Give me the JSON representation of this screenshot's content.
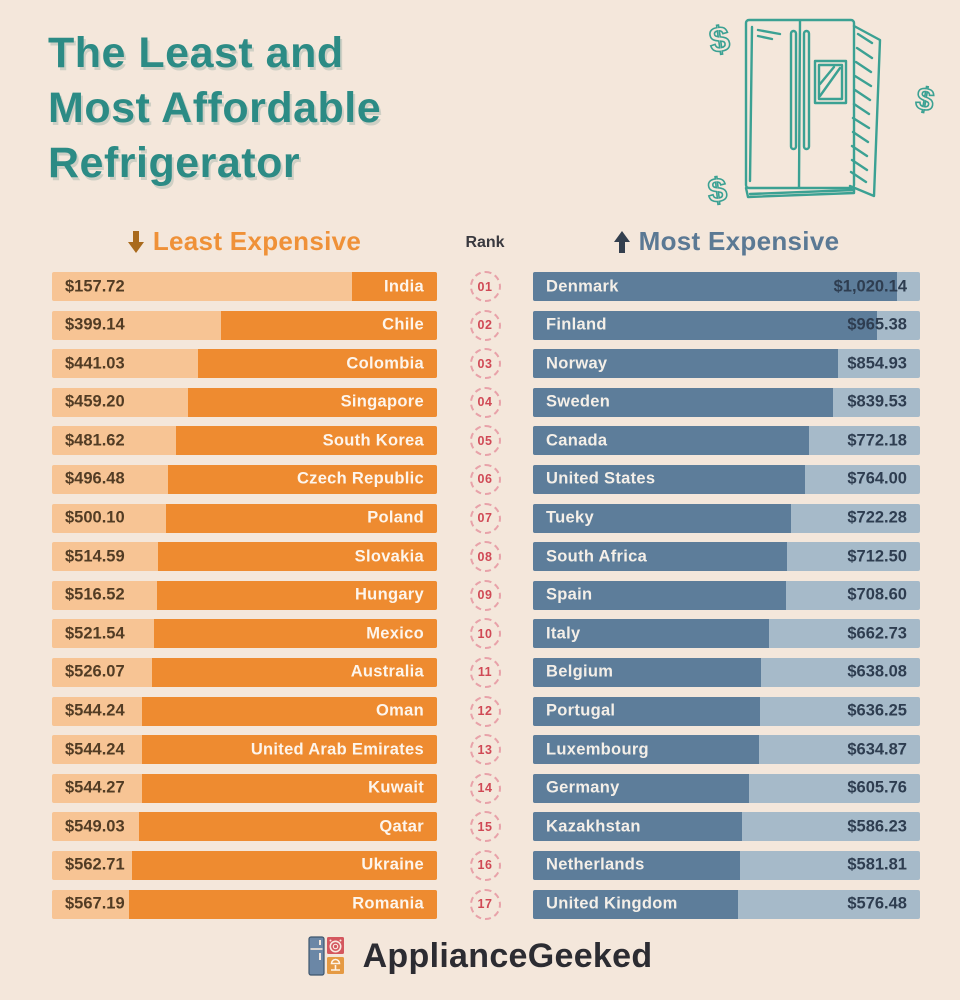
{
  "title": "The Least and\nMost Affordable\nRefrigerator",
  "header": {
    "least_label": "Least Expensive",
    "rank_label": "Rank",
    "most_label": "Most Expensive"
  },
  "footer": {
    "brand": "ApplianceGeeked"
  },
  "colors": {
    "background": "#f4e7db",
    "title_teal": "#2c8b85",
    "least_fill": "#ee8b30",
    "least_track": "#f7c494",
    "least_header": "#ef9138",
    "most_fill": "#5d7d9a",
    "most_track": "#a6bac9",
    "most_header": "#5b7994",
    "rank_number": "#d04955",
    "rank_circle": "#e8a2a9",
    "illustration_teal": "#3ba193"
  },
  "chart_data": {
    "type": "bar",
    "title": "The Least and Most Affordable Refrigerator",
    "legend_position": "top",
    "grid": false,
    "ranks": [
      "01",
      "02",
      "03",
      "04",
      "05",
      "06",
      "07",
      "08",
      "09",
      "10",
      "11",
      "12",
      "13",
      "14",
      "15",
      "16",
      "17"
    ],
    "least_expensive": {
      "label": "Least Expensive",
      "bar_direction": "right-anchored",
      "scale_max": 710,
      "countries": [
        "India",
        "Chile",
        "Colombia",
        "Singapore",
        "South Korea",
        "Czech Republic",
        "Poland",
        "Slovakia",
        "Hungary",
        "Mexico",
        "Australia",
        "Oman",
        "United Arab Emirates",
        "Kuwait",
        "Qatar",
        "Ukraine",
        "Romania"
      ],
      "prices": [
        "$157.72",
        "$399.14",
        "$441.03",
        "$459.20",
        "$481.62",
        "$496.48",
        "$500.10",
        "$514.59",
        "$516.52",
        "$521.54",
        "$526.07",
        "$544.24",
        "$544.24",
        "$544.27",
        "$549.03",
        "$562.71",
        "$567.19"
      ],
      "values": [
        157.72,
        399.14,
        441.03,
        459.2,
        481.62,
        496.48,
        500.1,
        514.59,
        516.52,
        521.54,
        526.07,
        544.24,
        544.24,
        544.27,
        549.03,
        562.71,
        567.19
      ]
    },
    "most_expensive": {
      "label": "Most Expensive",
      "bar_direction": "left-anchored",
      "scale_max": 1085,
      "countries": [
        "Denmark",
        "Finland",
        "Norway",
        "Sweden",
        "Canada",
        "United States",
        "Tueky",
        "South Africa",
        "Spain",
        "Italy",
        "Belgium",
        "Portugal",
        "Luxembourg",
        "Germany",
        "Kazakhstan",
        "Netherlands",
        "United Kingdom"
      ],
      "prices": [
        "$1,020.14",
        "$965.38",
        "$854.93",
        "$839.53",
        "$772.18",
        "$764.00",
        "$722.28",
        "$712.50",
        "$708.60",
        "$662.73",
        "$638.08",
        "$636.25",
        "$634.87",
        "$605.76",
        "$586.23",
        "$581.81",
        "$576.48"
      ],
      "values": [
        1020.14,
        965.38,
        854.93,
        839.53,
        772.18,
        764.0,
        722.28,
        712.5,
        708.6,
        662.73,
        638.08,
        636.25,
        634.87,
        605.76,
        586.23,
        581.81,
        576.48
      ]
    }
  }
}
